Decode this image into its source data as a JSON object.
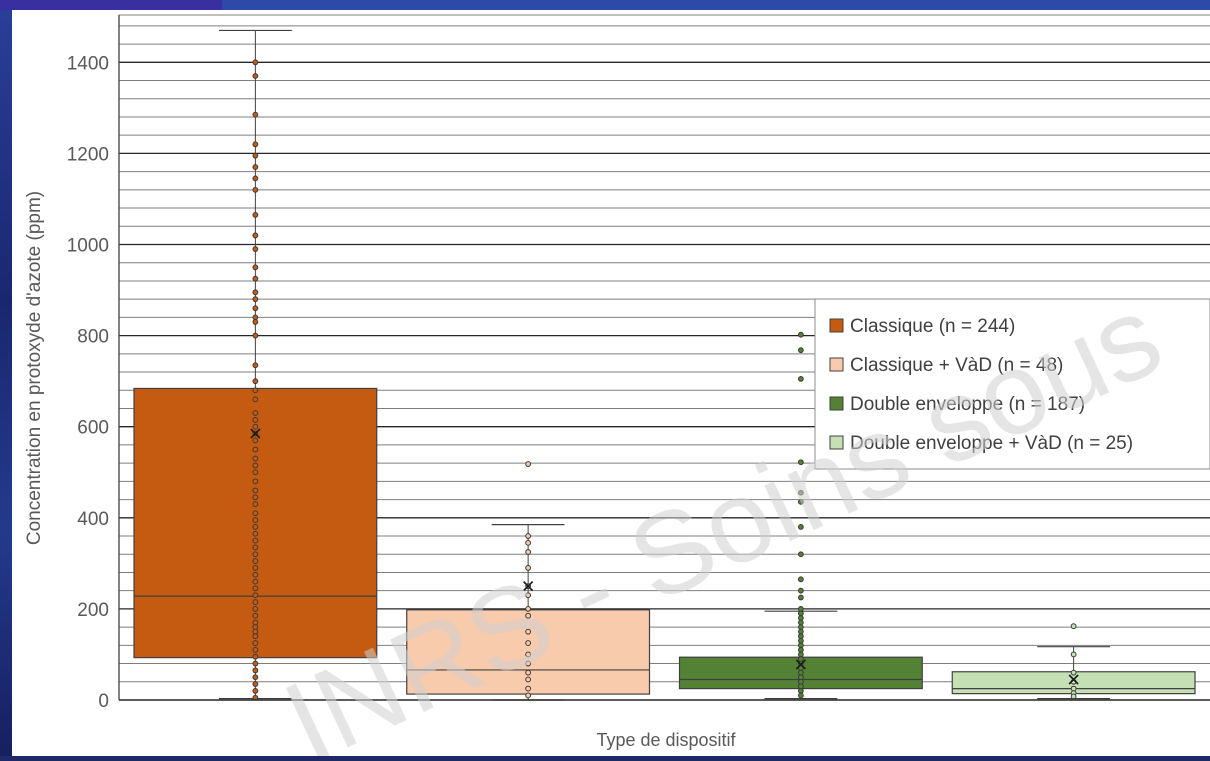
{
  "chart_data": {
    "type": "box",
    "xlabel": "Type de dispositif",
    "ylabel": "Concentration en protoxyde d'azote (ppm)",
    "ylim": [
      0,
      1500
    ],
    "yticks": [
      0,
      200,
      400,
      600,
      800,
      1000,
      1200,
      1400
    ],
    "minor_gridlines": true,
    "legend_position": "right",
    "series": [
      {
        "name": "Classique (n = 244)",
        "color": "#c55a11",
        "whisker_low": 3,
        "q1": 93,
        "median": 228,
        "q3": 684,
        "whisker_high": 1470,
        "mean": 585,
        "points": [
          1400,
          1370,
          1285,
          1220,
          1195,
          1170,
          1145,
          1120,
          1065,
          1020,
          990,
          950,
          925,
          895,
          880,
          860,
          840,
          830,
          800,
          735,
          700,
          680,
          660,
          630,
          615,
          600,
          585,
          570,
          550,
          530,
          515,
          500,
          480,
          460,
          445,
          430,
          410,
          395,
          380,
          365,
          350,
          335,
          320,
          305,
          290,
          275,
          260,
          245,
          230,
          215,
          200,
          185,
          170,
          160,
          150,
          140,
          125,
          110,
          95,
          80,
          65,
          50,
          35,
          20,
          5
        ]
      },
      {
        "name": "Classique + VàD (n = 48)",
        "color": "#f8cbad",
        "whisker_low": 0,
        "q1": 13,
        "median": 66,
        "q3": 198,
        "whisker_high": 385,
        "mean": 250,
        "points": [
          518,
          360,
          345,
          325,
          290,
          250,
          230,
          200,
          185,
          150,
          125,
          100,
          80,
          60,
          45,
          25,
          10
        ]
      },
      {
        "name": "Double enveloppe (n = 187)",
        "color": "#548235",
        "whisker_low": 3,
        "q1": 25,
        "median": 45,
        "q3": 94,
        "whisker_high": 195,
        "mean": 78,
        "points": [
          802,
          768,
          705,
          522,
          455,
          435,
          380,
          320,
          265,
          240,
          225,
          200,
          190,
          180,
          170,
          160,
          150,
          140,
          130,
          120,
          110,
          100,
          90,
          80,
          70,
          60,
          50,
          40,
          30,
          20,
          10
        ]
      },
      {
        "name": "Double enveloppe + VàD (n = 25)",
        "color": "#c5e0b4",
        "whisker_low": 3,
        "q1": 14,
        "median": 25,
        "q3": 62,
        "whisker_high": 117,
        "mean": 45,
        "points": [
          162,
          100,
          60,
          40,
          25,
          15,
          8
        ]
      }
    ]
  },
  "watermark": "INRS - Soins sous"
}
